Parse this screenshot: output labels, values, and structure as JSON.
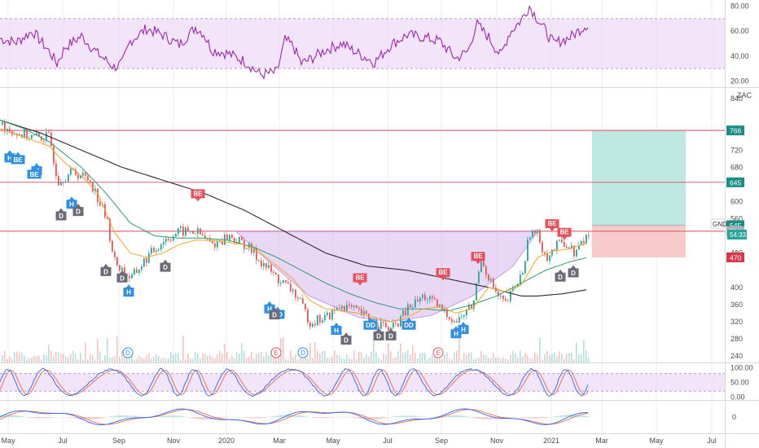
{
  "symbol": "GND",
  "currency_label": "ZAC",
  "countdown": "54:33",
  "colors": {
    "up": "#26a69a",
    "down": "#ef5350",
    "rsi": "#9c27b0",
    "band": "#e9d3f7",
    "ma_fast": "#f5a623",
    "ma_mid": "#2e9e6e",
    "ma_slow": "#2b2b2b",
    "cup": "#d6b8ef",
    "tp": "#bfe8e2",
    "sl": "#f8cbcb",
    "level": "#d44b62",
    "tag_red": "#e8505b",
    "tag_blue": "#2f8fe0",
    "tag_gray": "#6b6b78",
    "stoch_k": "#2962ff",
    "stoch_d": "#f2643c",
    "macd": "#2962ff",
    "signal": "#ef6c45"
  },
  "chart_data": [
    {
      "panel": "rsi",
      "type": "line",
      "ylim": [
        15,
        85
      ],
      "y_ticks": [
        "80.00",
        "60.00",
        "40.00",
        "20.00"
      ],
      "band": [
        30,
        70
      ],
      "waypoints": [
        [
          0,
          54
        ],
        [
          20,
          51
        ],
        [
          40,
          60
        ],
        [
          60,
          44
        ],
        [
          70,
          34
        ],
        [
          80,
          47
        ],
        [
          100,
          56
        ],
        [
          120,
          42
        ],
        [
          140,
          31
        ],
        [
          150,
          34
        ],
        [
          160,
          52
        ],
        [
          180,
          62
        ],
        [
          200,
          57
        ],
        [
          220,
          49
        ],
        [
          240,
          63
        ],
        [
          250,
          58
        ],
        [
          260,
          45
        ],
        [
          280,
          42
        ],
        [
          300,
          36
        ],
        [
          320,
          25
        ],
        [
          340,
          27
        ],
        [
          350,
          53
        ],
        [
          360,
          48
        ],
        [
          370,
          34
        ],
        [
          380,
          37
        ],
        [
          400,
          45
        ],
        [
          420,
          50
        ],
        [
          440,
          42
        ],
        [
          460,
          35
        ],
        [
          480,
          49
        ],
        [
          500,
          57
        ],
        [
          520,
          55
        ],
        [
          540,
          52
        ],
        [
          560,
          38
        ],
        [
          575,
          44
        ],
        [
          585,
          66
        ],
        [
          600,
          55
        ],
        [
          615,
          40
        ],
        [
          625,
          58
        ],
        [
          640,
          69
        ],
        [
          650,
          80
        ],
        [
          660,
          70
        ],
        [
          670,
          60
        ],
        [
          680,
          50
        ],
        [
          700,
          55
        ],
        [
          720,
          65
        ]
      ]
    },
    {
      "panel": "price",
      "type": "candlestick",
      "ylim": [
        225,
        865
      ],
      "y_ticks": [
        "840",
        "720",
        "680",
        "600",
        "560",
        "480",
        "400",
        "360",
        "320",
        "280",
        "240"
      ],
      "x_tick_labels": [
        "May",
        "Jul",
        "Sep",
        "Nov",
        "2020",
        "Mar",
        "May",
        "Jul",
        "Sep",
        "Nov",
        "2021",
        "Mar",
        "May",
        "Jul"
      ],
      "price_waypoints": [
        [
          0,
          780
        ],
        [
          20,
          760
        ],
        [
          40,
          750
        ],
        [
          60,
          750
        ],
        [
          70,
          650
        ],
        [
          90,
          670
        ],
        [
          110,
          650
        ],
        [
          130,
          560
        ],
        [
          140,
          460
        ],
        [
          160,
          420
        ],
        [
          180,
          470
        ],
        [
          200,
          510
        ],
        [
          220,
          530
        ],
        [
          240,
          530
        ],
        [
          260,
          500
        ],
        [
          280,
          520
        ],
        [
          300,
          500
        ],
        [
          320,
          460
        ],
        [
          340,
          420
        ],
        [
          360,
          390
        ],
        [
          380,
          320
        ],
        [
          400,
          330
        ],
        [
          420,
          360
        ],
        [
          440,
          340
        ],
        [
          460,
          320
        ],
        [
          480,
          300
        ],
        [
          500,
          350
        ],
        [
          520,
          380
        ],
        [
          540,
          350
        ],
        [
          560,
          320
        ],
        [
          580,
          360
        ],
        [
          590,
          470
        ],
        [
          600,
          420
        ],
        [
          610,
          380
        ],
        [
          620,
          360
        ],
        [
          640,
          430
        ],
        [
          650,
          530
        ],
        [
          660,
          520
        ],
        [
          670,
          470
        ],
        [
          690,
          510
        ],
        [
          705,
          480
        ],
        [
          722,
          525
        ]
      ],
      "ma_fast_waypoints": [
        [
          0,
          770
        ],
        [
          30,
          750
        ],
        [
          60,
          730
        ],
        [
          80,
          690
        ],
        [
          100,
          660
        ],
        [
          120,
          620
        ],
        [
          140,
          530
        ],
        [
          160,
          480
        ],
        [
          180,
          470
        ],
        [
          200,
          480
        ],
        [
          220,
          500
        ],
        [
          240,
          510
        ],
        [
          260,
          510
        ],
        [
          280,
          505
        ],
        [
          300,
          500
        ],
        [
          320,
          480
        ],
        [
          340,
          450
        ],
        [
          360,
          420
        ],
        [
          380,
          370
        ],
        [
          400,
          350
        ],
        [
          420,
          345
        ],
        [
          440,
          340
        ],
        [
          460,
          330
        ],
        [
          480,
          320
        ],
        [
          500,
          330
        ],
        [
          520,
          350
        ],
        [
          540,
          355
        ],
        [
          560,
          340
        ],
        [
          580,
          350
        ],
        [
          600,
          400
        ],
        [
          620,
          390
        ],
        [
          640,
          405
        ],
        [
          660,
          470
        ],
        [
          680,
          485
        ],
        [
          700,
          490
        ],
        [
          722,
          505
        ]
      ],
      "ma_mid_waypoints": [
        [
          0,
          790
        ],
        [
          30,
          770
        ],
        [
          60,
          740
        ],
        [
          80,
          710
        ],
        [
          100,
          680
        ],
        [
          130,
          620
        ],
        [
          160,
          550
        ],
        [
          190,
          520
        ],
        [
          220,
          515
        ],
        [
          250,
          515
        ],
        [
          280,
          510
        ],
        [
          310,
          495
        ],
        [
          340,
          470
        ],
        [
          370,
          440
        ],
        [
          400,
          410
        ],
        [
          430,
          385
        ],
        [
          460,
          365
        ],
        [
          490,
          350
        ],
        [
          520,
          350
        ],
        [
          550,
          345
        ],
        [
          580,
          360
        ],
        [
          610,
          380
        ],
        [
          640,
          410
        ],
        [
          670,
          440
        ],
        [
          700,
          460
        ],
        [
          722,
          470
        ]
      ],
      "ma_slow_waypoints": [
        [
          0,
          790
        ],
        [
          50,
          760
        ],
        [
          100,
          720
        ],
        [
          150,
          680
        ],
        [
          200,
          650
        ],
        [
          250,
          620
        ],
        [
          300,
          580
        ],
        [
          350,
          530
        ],
        [
          400,
          480
        ],
        [
          450,
          450
        ],
        [
          500,
          440
        ],
        [
          550,
          420
        ],
        [
          600,
          400
        ],
        [
          640,
          380
        ],
        [
          660,
          380
        ],
        [
          690,
          385
        ],
        [
          722,
          395
        ]
      ],
      "cup_path": [
        [
          290,
          530
        ],
        [
          330,
          460
        ],
        [
          380,
          380
        ],
        [
          440,
          330
        ],
        [
          480,
          320
        ],
        [
          530,
          335
        ],
        [
          580,
          380
        ],
        [
          630,
          450
        ],
        [
          660,
          530
        ]
      ],
      "levels": [
        766,
        645,
        531
      ],
      "axis_labels": [
        {
          "value": 766,
          "text": "766",
          "color": "#1e8c86"
        },
        {
          "value": 645,
          "text": "645",
          "color": "#1e8c86"
        },
        {
          "value": 545,
          "text": "545",
          "color": "#1e8c86"
        },
        {
          "value": 531,
          "text": "531",
          "color": "#b0b0b0"
        },
        {
          "value": 470,
          "text": "470",
          "color": "#d8364a"
        }
      ],
      "trade_box": {
        "x_start": 727,
        "x_end": 842,
        "entry": 545,
        "target": 766,
        "stop": 470
      },
      "tags": [
        {
          "x": 12,
          "value": 720,
          "text": "H",
          "color": "blue"
        },
        {
          "x": 22,
          "value": 716,
          "text": "BE",
          "color": "blue"
        },
        {
          "x": 45,
          "value": 690,
          "text": "H",
          "color": "blue"
        },
        {
          "x": 42,
          "value": 682,
          "text": "BE",
          "color": "blue"
        },
        {
          "x": 88,
          "value": 612,
          "text": "H",
          "color": "blue"
        },
        {
          "x": 75,
          "value": 585,
          "text": "D",
          "color": "gray"
        },
        {
          "x": 96,
          "value": 595,
          "text": "D",
          "color": "gray"
        },
        {
          "x": 243,
          "value": 608,
          "text": "BE",
          "color": "red"
        },
        {
          "x": 130,
          "value": 455,
          "text": "D",
          "color": "gray"
        },
        {
          "x": 203,
          "value": 465,
          "text": "D",
          "color": "gray"
        },
        {
          "x": 150,
          "value": 440,
          "text": "D",
          "color": "gray"
        },
        {
          "x": 158,
          "value": 407,
          "text": "H",
          "color": "blue"
        },
        {
          "x": 331,
          "value": 368,
          "text": "H",
          "color": "blue"
        },
        {
          "x": 341,
          "value": 355,
          "text": "DD",
          "color": "blue"
        },
        {
          "x": 337,
          "value": 354,
          "text": "D",
          "color": "gray"
        },
        {
          "x": 442,
          "value": 412,
          "text": "BE",
          "color": "red"
        },
        {
          "x": 413,
          "value": 318,
          "text": "H",
          "color": "blue"
        },
        {
          "x": 425,
          "value": 295,
          "text": "D",
          "color": "gray"
        },
        {
          "x": 455,
          "value": 330,
          "text": "DD",
          "color": "blue"
        },
        {
          "x": 465,
          "value": 305,
          "text": "D",
          "color": "gray"
        },
        {
          "x": 480,
          "value": 305,
          "text": "D",
          "color": "gray"
        },
        {
          "x": 502,
          "value": 330,
          "text": "DD",
          "color": "blue"
        },
        {
          "x": 544,
          "value": 424,
          "text": "BE",
          "color": "red"
        },
        {
          "x": 587,
          "value": 462,
          "text": "BE",
          "color": "red"
        },
        {
          "x": 560,
          "value": 310,
          "text": "H",
          "color": "blue"
        },
        {
          "x": 569,
          "value": 320,
          "text": "H",
          "color": "blue"
        },
        {
          "x": 678,
          "value": 538,
          "text": "BE",
          "color": "red"
        },
        {
          "x": 693,
          "value": 518,
          "text": "BE",
          "color": "red"
        },
        {
          "x": 688,
          "value": 442,
          "text": "D",
          "color": "gray"
        },
        {
          "x": 704,
          "value": 452,
          "text": "D",
          "color": "gray"
        }
      ],
      "events": [
        {
          "x": 157,
          "text": "D",
          "color": "#2f8fe0"
        },
        {
          "x": 339,
          "text": "E",
          "color": "#e8505b"
        },
        {
          "x": 372,
          "text": "D",
          "color": "#2f8fe0"
        },
        {
          "x": 538,
          "text": "E",
          "color": "#e8505b"
        }
      ]
    },
    {
      "panel": "stochastic",
      "type": "line",
      "ylim": [
        -10,
        115
      ],
      "y_ticks": [
        "100.00",
        "50.00",
        "0.00"
      ],
      "band": [
        20,
        80
      ]
    },
    {
      "panel": "macd",
      "type": "line",
      "ylim": [
        -60,
        60
      ],
      "y_ticks": [
        "0"
      ]
    }
  ]
}
